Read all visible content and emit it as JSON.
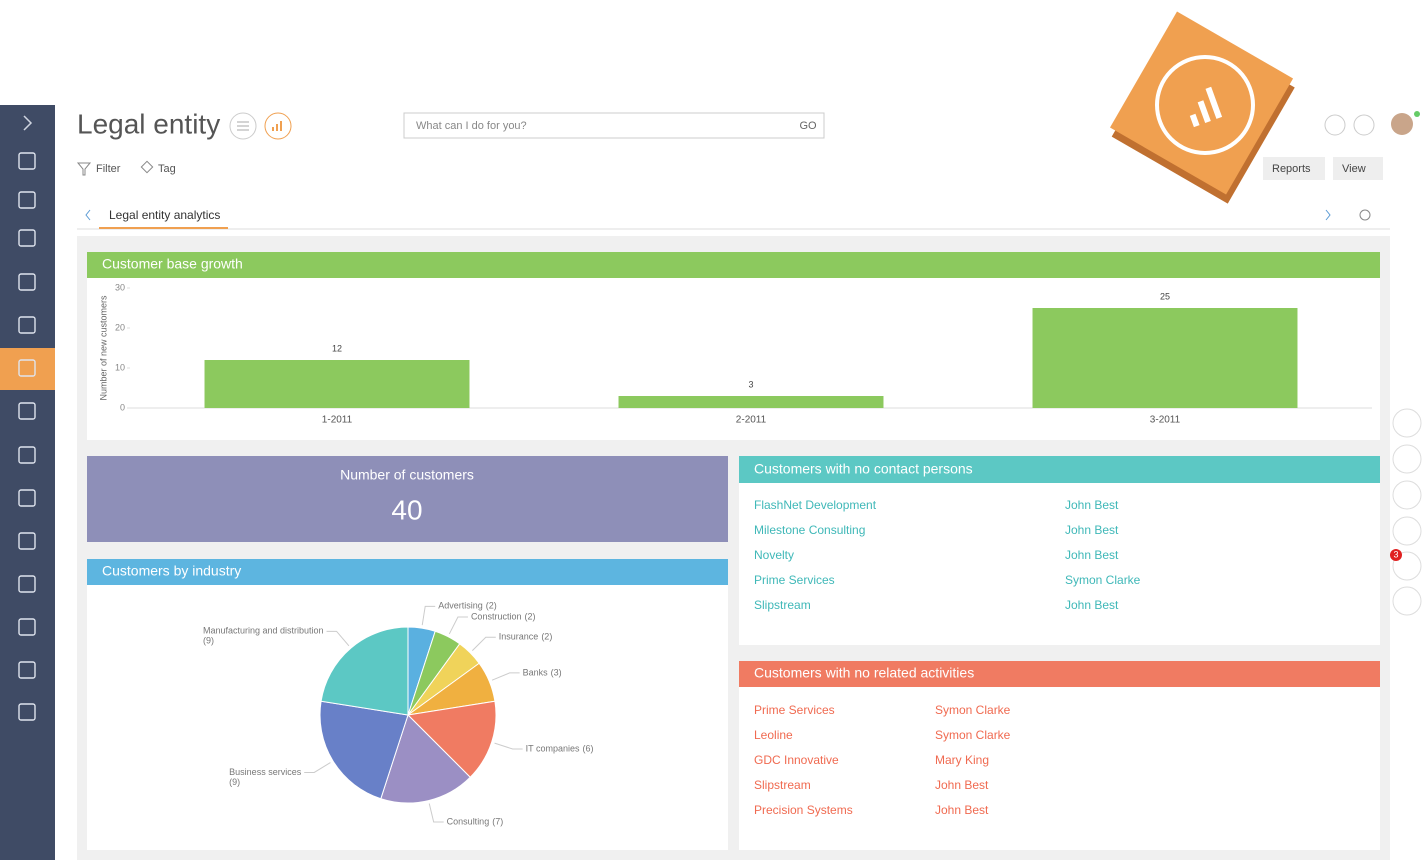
{
  "header": {
    "title": "Legal entity",
    "search_placeholder": "What can I do for you?",
    "search_button": "GO"
  },
  "toolbar": {
    "filter": "Filter",
    "tag": "Tag",
    "reports": "Reports",
    "view": "View"
  },
  "tab": "Legal entity analytics",
  "bar_chart": {
    "type": "bar",
    "title": "Customer base growth",
    "y_label": "Number of new customers",
    "categories": [
      "1-2011",
      "2-2011",
      "3-2011"
    ],
    "values": [
      12,
      3,
      25
    ],
    "color": "#8cc95e",
    "ylim": [
      0,
      30
    ],
    "yticks": [
      0,
      10,
      20,
      30
    ]
  },
  "metric": {
    "title": "Number of customers",
    "value": 40
  },
  "pie_chart": {
    "type": "pie",
    "title": "Customers by industry",
    "categories": [
      "Advertising",
      "Construction",
      "Insurance",
      "Banks",
      "IT companies",
      "Consulting",
      "Business services",
      "Manufacturing and distribution"
    ],
    "values": [
      2,
      2,
      2,
      3,
      6,
      7,
      9,
      9
    ],
    "value_labels": [
      "(2)",
      "(2)",
      "(2)",
      "(3)",
      "(6)",
      "(7)",
      "(9)",
      "(9)"
    ],
    "colors": [
      "#5ab0e0",
      "#8cc95e",
      "#f0d35a",
      "#f0b040",
      "#f07b62",
      "#9b8fc4",
      "#6880c8",
      "#5cc8c4"
    ]
  },
  "no_contacts": {
    "title": "Customers with no contact persons",
    "rows": [
      [
        "FlashNet Development",
        "John Best"
      ],
      [
        "Milestone Consulting",
        "John Best"
      ],
      [
        "Novelty",
        "John Best"
      ],
      [
        "Prime Services",
        "Symon Clarke"
      ],
      [
        "Slipstream",
        "John Best"
      ]
    ]
  },
  "no_activities": {
    "title": "Customers with no related activities",
    "rows": [
      [
        "Prime Services",
        "Symon Clarke"
      ],
      [
        "Leoline",
        "Symon Clarke"
      ],
      [
        "GDC Innovative",
        "Mary King"
      ],
      [
        "Slipstream",
        "John Best"
      ],
      [
        "Precision Systems",
        "John Best"
      ]
    ]
  },
  "notifications_badge": 3
}
